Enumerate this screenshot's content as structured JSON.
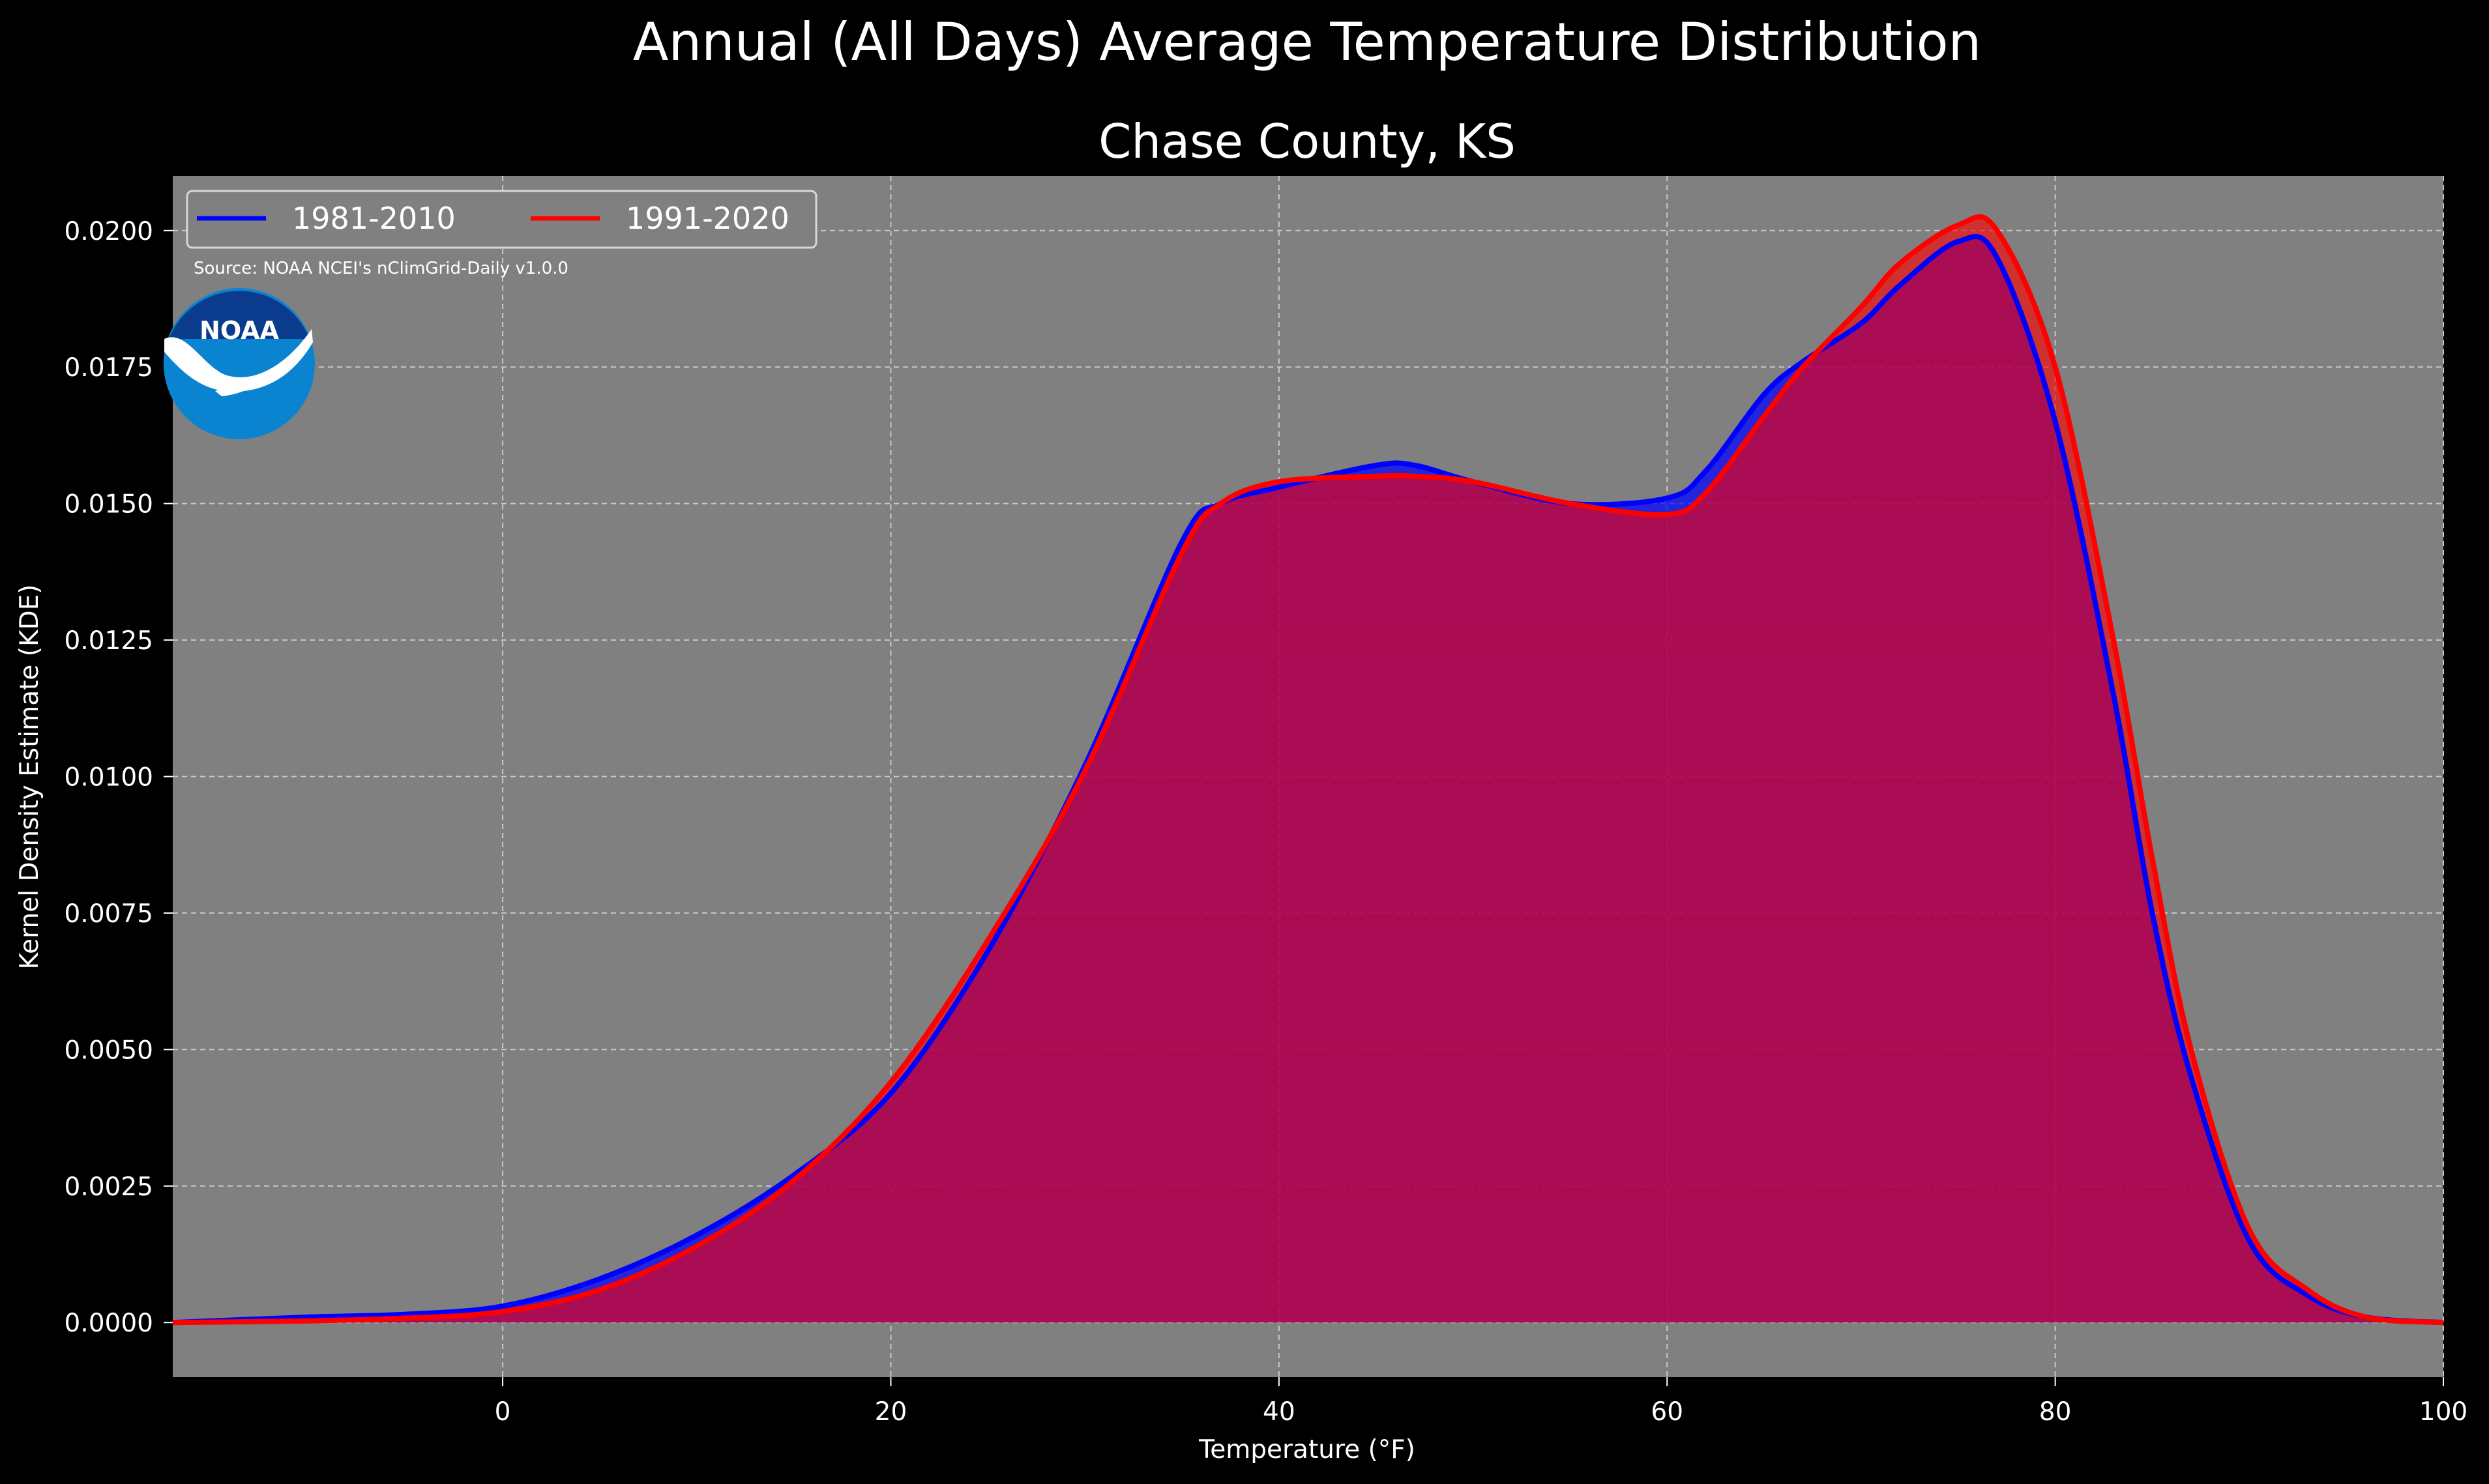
{
  "suptitle": "Annual (All Days) Average Temperature Distribution",
  "logo": {
    "text": "NOAA",
    "icon": "noaa-logo-icon"
  },
  "source_note": "Source: NOAA NCEI's nClimGrid-Daily v1.0.0",
  "colors": {
    "figure_bg": "#000000",
    "axes_bg": "#808080",
    "series_1981": "#0000ff",
    "series_1991": "#ff0000",
    "fill_overlap": "#9b1f5c",
    "noaa_dark": "#0b3b8c",
    "noaa_light": "#0a84d0"
  },
  "chart_data": {
    "type": "area",
    "title": "Chase County, KS",
    "xlabel": "Temperature (°F)",
    "ylabel": "Kernel Density Estimate (KDE)",
    "xlim": [
      -17,
      100
    ],
    "ylim": [
      -0.001,
      0.021
    ],
    "xticks": [
      0,
      20,
      40,
      60,
      80,
      100
    ],
    "xtick_labels": [
      "0",
      "20",
      "40",
      "60",
      "80",
      "100"
    ],
    "yticks": [
      0,
      0.0025,
      0.005,
      0.0075,
      0.01,
      0.0125,
      0.015,
      0.0175,
      0.02
    ],
    "ytick_labels": [
      "0.0000",
      "0.0025",
      "0.0050",
      "0.0075",
      "0.0100",
      "0.0125",
      "0.0150",
      "0.0175",
      "0.0200"
    ],
    "grid": true,
    "legend_position": "top-left",
    "series": [
      {
        "name": "1981-2010",
        "color": "#0000ff",
        "x": [
          -17,
          -10,
          -5,
          0,
          5,
          10,
          15,
          20,
          25,
          30,
          35,
          37,
          40,
          45,
          47,
          50,
          55,
          60,
          62,
          65,
          67,
          70,
          72,
          75,
          77,
          80,
          83,
          85,
          87,
          90,
          93,
          96,
          100
        ],
        "y": [
          0,
          0.0001,
          0.00015,
          0.0003,
          0.0008,
          0.0016,
          0.0027,
          0.0042,
          0.0068,
          0.0102,
          0.0143,
          0.015,
          0.0153,
          0.0157,
          0.0157,
          0.0154,
          0.015,
          0.0151,
          0.0156,
          0.017,
          0.0176,
          0.0183,
          0.019,
          0.0198,
          0.0195,
          0.0165,
          0.0115,
          0.0075,
          0.0045,
          0.0015,
          0.0005,
          0.0001,
          0
        ]
      },
      {
        "name": "1991-2020",
        "color": "#ff0000",
        "x": [
          -17,
          -10,
          -5,
          0,
          5,
          10,
          15,
          20,
          25,
          30,
          35,
          37,
          40,
          45,
          47,
          50,
          55,
          60,
          62,
          65,
          67,
          70,
          72,
          75,
          77,
          80,
          83,
          85,
          87,
          90,
          93,
          96,
          100
        ],
        "y": [
          0,
          3e-05,
          8e-05,
          0.0002,
          0.0006,
          0.0014,
          0.0026,
          0.0044,
          0.007,
          0.0101,
          0.0141,
          0.015,
          0.0154,
          0.0155,
          0.0155,
          0.0154,
          0.015,
          0.0148,
          0.0152,
          0.0166,
          0.0175,
          0.0186,
          0.0194,
          0.0201,
          0.02,
          0.0175,
          0.0125,
          0.0085,
          0.005,
          0.0017,
          0.0006,
          0.0001,
          0
        ]
      }
    ]
  }
}
